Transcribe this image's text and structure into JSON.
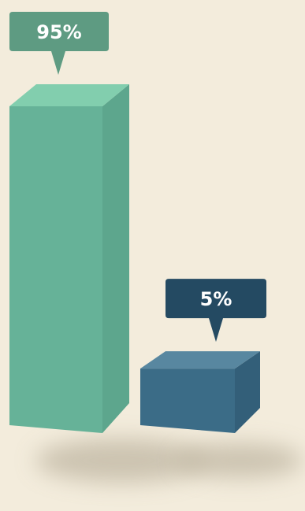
{
  "chart_data": {
    "type": "bar",
    "title": "",
    "categories": [
      "",
      ""
    ],
    "values": [
      95,
      5
    ],
    "data_labels": [
      "95%",
      "5%"
    ],
    "ylim": [
      0,
      100
    ],
    "grid": false,
    "style": "3d-isometric-columns",
    "colors": {
      "bar1_front": "#66b298",
      "bar1_side": "#5da68d",
      "bar1_top": "#82ceae",
      "bar1_callout": "#5e9b82",
      "bar2_front": "#3b6c87",
      "bar2_side": "#335f79",
      "bar2_top": "#5887a0",
      "bar2_callout": "#244a62"
    }
  }
}
